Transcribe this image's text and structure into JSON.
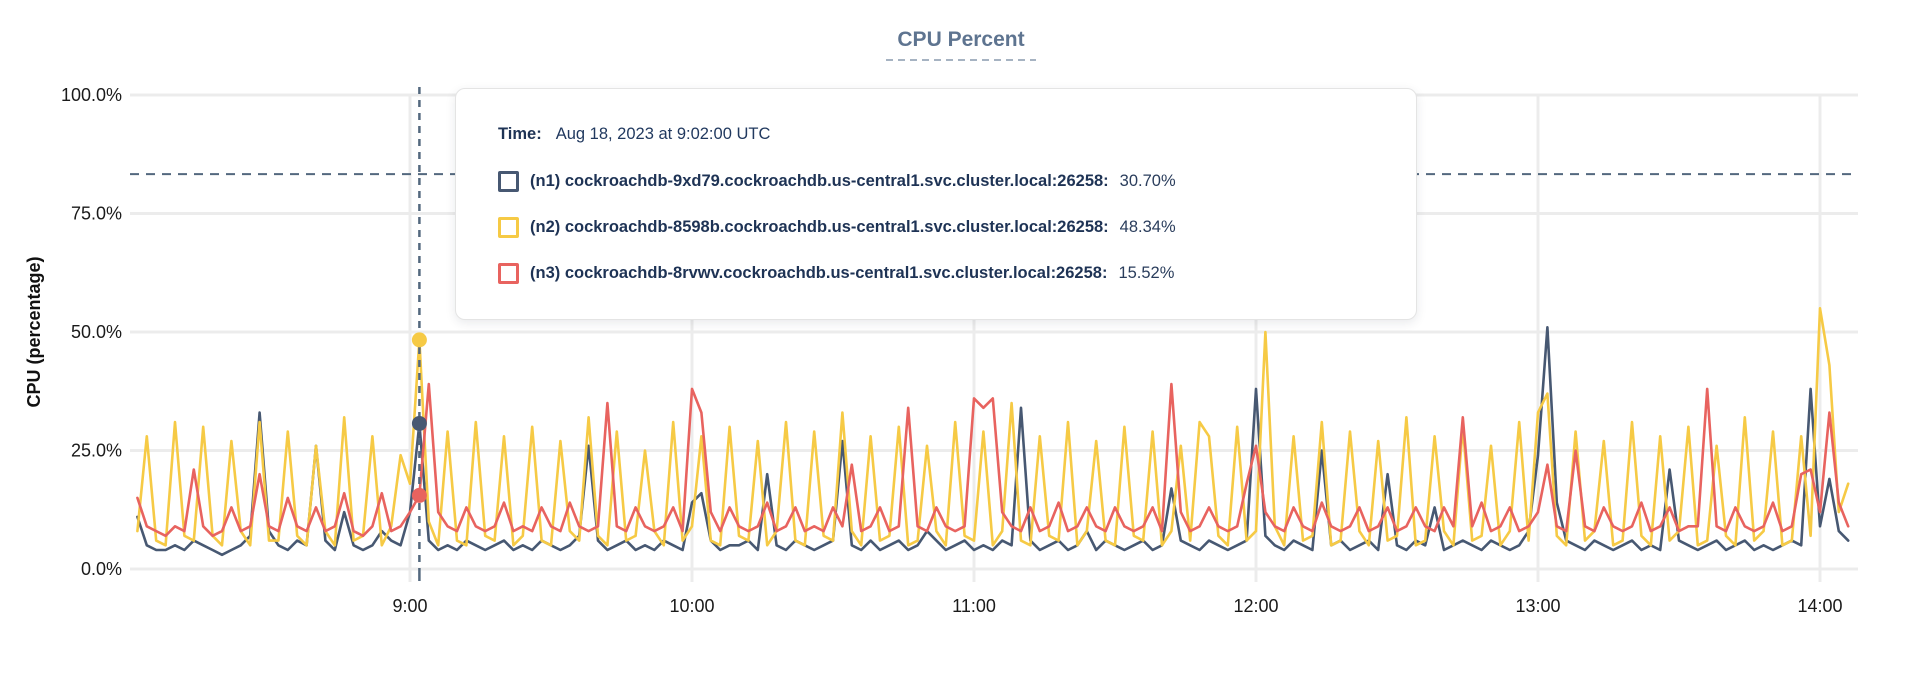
{
  "chart": {
    "title": "CPU Percent",
    "y_axis_label": "CPU (percentage)"
  },
  "tooltip": {
    "time_label": "Time:",
    "time_value": "Aug 18, 2023 at 9:02:00 UTC",
    "rows": [
      {
        "label": "(n1) cockroachdb-9xd79.cockroachdb.us-central1.svc.cluster.local:26258:",
        "value": "30.70%",
        "color": "#475872"
      },
      {
        "label": "(n2) cockroachdb-8598b.cockroachdb.us-central1.svc.cluster.local:26258:",
        "value": "48.34%",
        "color": "#f6ca45"
      },
      {
        "label": "(n3) cockroachdb-8rvwv.cockroachdb.us-central1.svc.cluster.local:26258:",
        "value": "15.52%",
        "color": "#e8635f"
      }
    ]
  },
  "chart_data": {
    "type": "line",
    "title": "CPU Percent",
    "xlabel": "",
    "ylabel": "CPU (percentage)",
    "ylim": [
      0,
      100
    ],
    "grid": true,
    "legend_position": "tooltip-overlay",
    "y_ticks": [
      {
        "label": "100.0%",
        "value": 100
      },
      {
        "label": "75.0%",
        "value": 75
      },
      {
        "label": "50.0%",
        "value": 50
      },
      {
        "label": "25.0%",
        "value": 25
      },
      {
        "label": "0.0%",
        "value": 0
      }
    ],
    "x_ticks": [
      {
        "label": "9:00",
        "minutes": 540
      },
      {
        "label": "10:00",
        "minutes": 600
      },
      {
        "label": "11:00",
        "minutes": 660
      },
      {
        "label": "12:00",
        "minutes": 720
      },
      {
        "label": "13:00",
        "minutes": 780
      },
      {
        "label": "14:00",
        "minutes": 840
      }
    ],
    "x_axis_start_minutes": 480,
    "x_axis_end_minutes": 848,
    "x_start_minutes": 482,
    "x_step_minutes": 2,
    "threshold_percent": 83.3,
    "hover": {
      "time_minutes": 542,
      "time_text": "Aug 18, 2023 at 9:02:00 UTC",
      "values": [
        30.7,
        48.34,
        15.52
      ]
    },
    "series": [
      {
        "name": "n1",
        "node": "cockroachdb-9xd79.cockroachdb.us-central1.svc.cluster.local:26258",
        "color": "#475872",
        "values": [
          11,
          5,
          4,
          4,
          5,
          4,
          6,
          5,
          4,
          3,
          4,
          5,
          7,
          33,
          8,
          5,
          4,
          6,
          5,
          26,
          6,
          4,
          12,
          5,
          4,
          5,
          8,
          6,
          5,
          12,
          30.7,
          6,
          4,
          5,
          4,
          6,
          5,
          4,
          5,
          6,
          4,
          5,
          4,
          6,
          5,
          4,
          5,
          7,
          26,
          6,
          4,
          5,
          6,
          4,
          5,
          4,
          6,
          5,
          4,
          14,
          16,
          6,
          4,
          5,
          5,
          6,
          4,
          20,
          5,
          4,
          6,
          5,
          4,
          5,
          6,
          27,
          5,
          4,
          6,
          4,
          5,
          6,
          4,
          5,
          8,
          6,
          4,
          5,
          6,
          4,
          5,
          4,
          6,
          5,
          34,
          6,
          4,
          5,
          6,
          4,
          5,
          8,
          4,
          6,
          5,
          4,
          5,
          6,
          4,
          5,
          17,
          6,
          5,
          4,
          6,
          5,
          4,
          5,
          6,
          38,
          7,
          5,
          4,
          6,
          5,
          4,
          25,
          5,
          6,
          4,
          5,
          6,
          4,
          20,
          5,
          4,
          6,
          5,
          13,
          4,
          5,
          6,
          5,
          4,
          6,
          5,
          4,
          5,
          8,
          24,
          51,
          14,
          6,
          5,
          4,
          6,
          5,
          4,
          5,
          6,
          4,
          5,
          4,
          21,
          6,
          5,
          4,
          5,
          6,
          4,
          5,
          6,
          4,
          5,
          4,
          5,
          6,
          5,
          38,
          9,
          19,
          8,
          6
        ]
      },
      {
        "name": "n2",
        "node": "cockroachdb-8598b.cockroachdb.us-central1.svc.cluster.local:26258",
        "color": "#f6ca45",
        "values": [
          8,
          28,
          6,
          5,
          31,
          7,
          6,
          30,
          7,
          5,
          27,
          8,
          5,
          31,
          6,
          6,
          29,
          7,
          5,
          26,
          8,
          5,
          32,
          6,
          7,
          28,
          5,
          9,
          24,
          18,
          48.34,
          10,
          5,
          29,
          6,
          5,
          31,
          7,
          6,
          28,
          5,
          7,
          30,
          6,
          5,
          27,
          8,
          6,
          32,
          7,
          5,
          29,
          6,
          7,
          25,
          8,
          5,
          31,
          6,
          9,
          28,
          6,
          5,
          30,
          7,
          6,
          27,
          5,
          8,
          31,
          6,
          5,
          29,
          7,
          6,
          33,
          8,
          5,
          28,
          6,
          7,
          30,
          5,
          6,
          26,
          8,
          5,
          31,
          7,
          6,
          29,
          5,
          8,
          35,
          6,
          5,
          28,
          7,
          6,
          31,
          5,
          8,
          27,
          6,
          5,
          30,
          7,
          6,
          29,
          5,
          8,
          26,
          6,
          31,
          28,
          7,
          5,
          30,
          6,
          8,
          50,
          9,
          5,
          28,
          6,
          7,
          31,
          5,
          6,
          29,
          8,
          5,
          27,
          6,
          7,
          32,
          5,
          6,
          28,
          8,
          5,
          30,
          6,
          7,
          26,
          5,
          8,
          31,
          6,
          33,
          37,
          7,
          5,
          29,
          6,
          8,
          27,
          5,
          6,
          31,
          7,
          5,
          28,
          6,
          8,
          30,
          5,
          6,
          26,
          7,
          5,
          32,
          6,
          8,
          29,
          5,
          6,
          28,
          7,
          55,
          43,
          12,
          18
        ]
      },
      {
        "name": "n3",
        "node": "cockroachdb-8rvwv.cockroachdb.us-central1.svc.cluster.local:26258",
        "color": "#e8635f",
        "values": [
          15,
          9,
          8,
          7,
          9,
          8,
          21,
          9,
          7,
          8,
          13,
          8,
          9,
          20,
          9,
          8,
          15,
          9,
          8,
          13,
          8,
          9,
          16,
          8,
          7,
          9,
          16,
          8,
          9,
          12,
          15.52,
          39,
          12,
          9,
          8,
          13,
          9,
          8,
          9,
          14,
          8,
          9,
          8,
          13,
          9,
          8,
          14,
          9,
          8,
          9,
          35,
          9,
          8,
          13,
          9,
          8,
          9,
          13,
          8,
          38,
          33,
          12,
          8,
          13,
          9,
          8,
          9,
          14,
          8,
          9,
          13,
          8,
          9,
          8,
          13,
          9,
          22,
          8,
          9,
          13,
          8,
          9,
          34,
          9,
          8,
          13,
          9,
          8,
          9,
          36,
          34,
          36,
          12,
          9,
          8,
          13,
          8,
          9,
          14,
          8,
          9,
          13,
          9,
          8,
          13,
          9,
          8,
          9,
          13,
          8,
          39,
          12,
          8,
          9,
          13,
          9,
          8,
          9,
          18,
          26,
          12,
          9,
          8,
          13,
          9,
          8,
          14,
          9,
          8,
          9,
          13,
          8,
          9,
          13,
          8,
          9,
          13,
          9,
          8,
          13,
          9,
          32,
          9,
          14,
          8,
          9,
          13,
          8,
          9,
          12,
          22,
          9,
          8,
          25,
          9,
          8,
          13,
          9,
          8,
          9,
          14,
          8,
          9,
          13,
          8,
          9,
          9,
          38,
          9,
          8,
          13,
          9,
          8,
          9,
          14,
          8,
          9,
          20,
          21,
          12,
          33,
          14,
          9
        ]
      }
    ],
    "colors": {
      "grid": "#ececec",
      "dashed_slate": "#53687e",
      "title": "#5e7490",
      "tick_text": "#1a1a1a"
    }
  }
}
